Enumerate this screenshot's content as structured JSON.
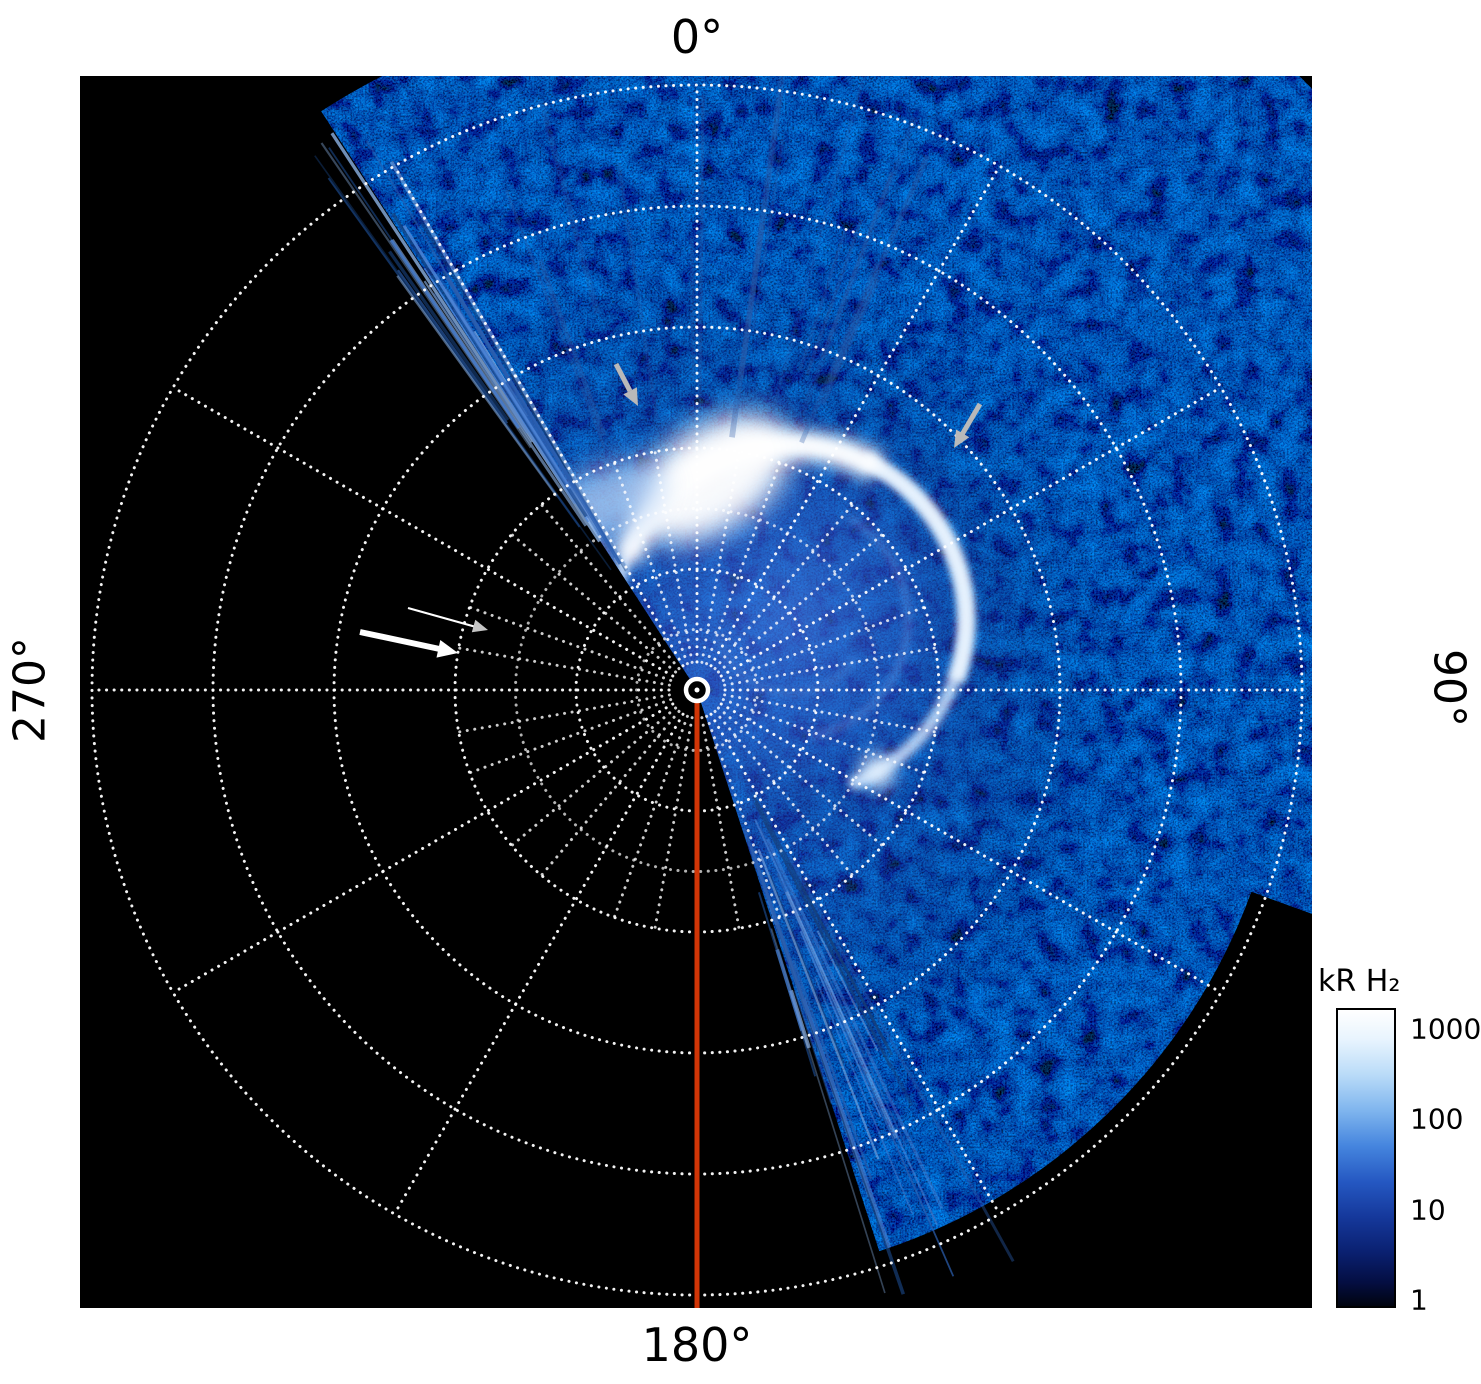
{
  "labels": {
    "top": "0°",
    "right": "90°",
    "bottom": "180°",
    "left": "270°"
  },
  "colorbar": {
    "title": "kR H₂",
    "ticks": [
      "1000",
      "100",
      "10",
      "1"
    ]
  },
  "colors": {
    "page_background": "#ffffff",
    "image_background": "#000000",
    "grid": "#ffffff",
    "meridian_line": "#d13506",
    "arrow_gray": "#b9b9b9",
    "arrow_white": "#ffffff",
    "aurora_bright": "#ffffff",
    "aurora_mid": "#3a7bd5",
    "aurora_dark": "#0a1f5e"
  },
  "chart_data": {
    "type": "heatmap",
    "projection": "polar",
    "title": "",
    "angle_tick_labels": [
      "0°",
      "90°",
      "180°",
      "270°"
    ],
    "angle_ticks_deg": [
      0,
      90,
      180,
      270
    ],
    "grid": {
      "style": "dotted",
      "ring_count": 5,
      "inner_minor_rings": 2,
      "major_spoke_step_deg": 30,
      "inner_minor_spoke_step_deg": 10
    },
    "image_sector_deg": {
      "start": -33,
      "end": 162
    },
    "colorbar": {
      "title": "kR H₂",
      "scale": "log",
      "tick_values": [
        1000,
        100,
        10,
        1
      ],
      "colormap_description": "black → dark blue → blue → light blue → white (increasing brightness)"
    },
    "features": [
      {
        "name": "main-auroral-oval",
        "description": "bright emission ring offset from the pole toward 90°–135° azimuth; brightest, widest arc segment between ~315° and ~30° azimuth"
      },
      {
        "name": "background-speckle",
        "description": "faint speckled blue emission filling the imaged sector, densest toward 45°–90° azimuth, ragged streaked edges at the sector boundaries"
      }
    ],
    "annotations": [
      {
        "type": "meridian-line",
        "azimuth_deg": 180,
        "color": "#d13506"
      },
      {
        "type": "pole-marker",
        "shape": "white circle at projection center"
      },
      {
        "type": "arrow",
        "color": "gray",
        "target": "poleward edge of oval near 0° azimuth"
      },
      {
        "type": "arrow",
        "color": "gray",
        "target": "oval arc near 45°–60° azimuth"
      },
      {
        "type": "arrow",
        "color": "white",
        "target": "location near 270° azimuth at mid radius"
      },
      {
        "type": "arrow",
        "color": "gray",
        "target": "location near 270° azimuth, thin leader line"
      }
    ]
  }
}
